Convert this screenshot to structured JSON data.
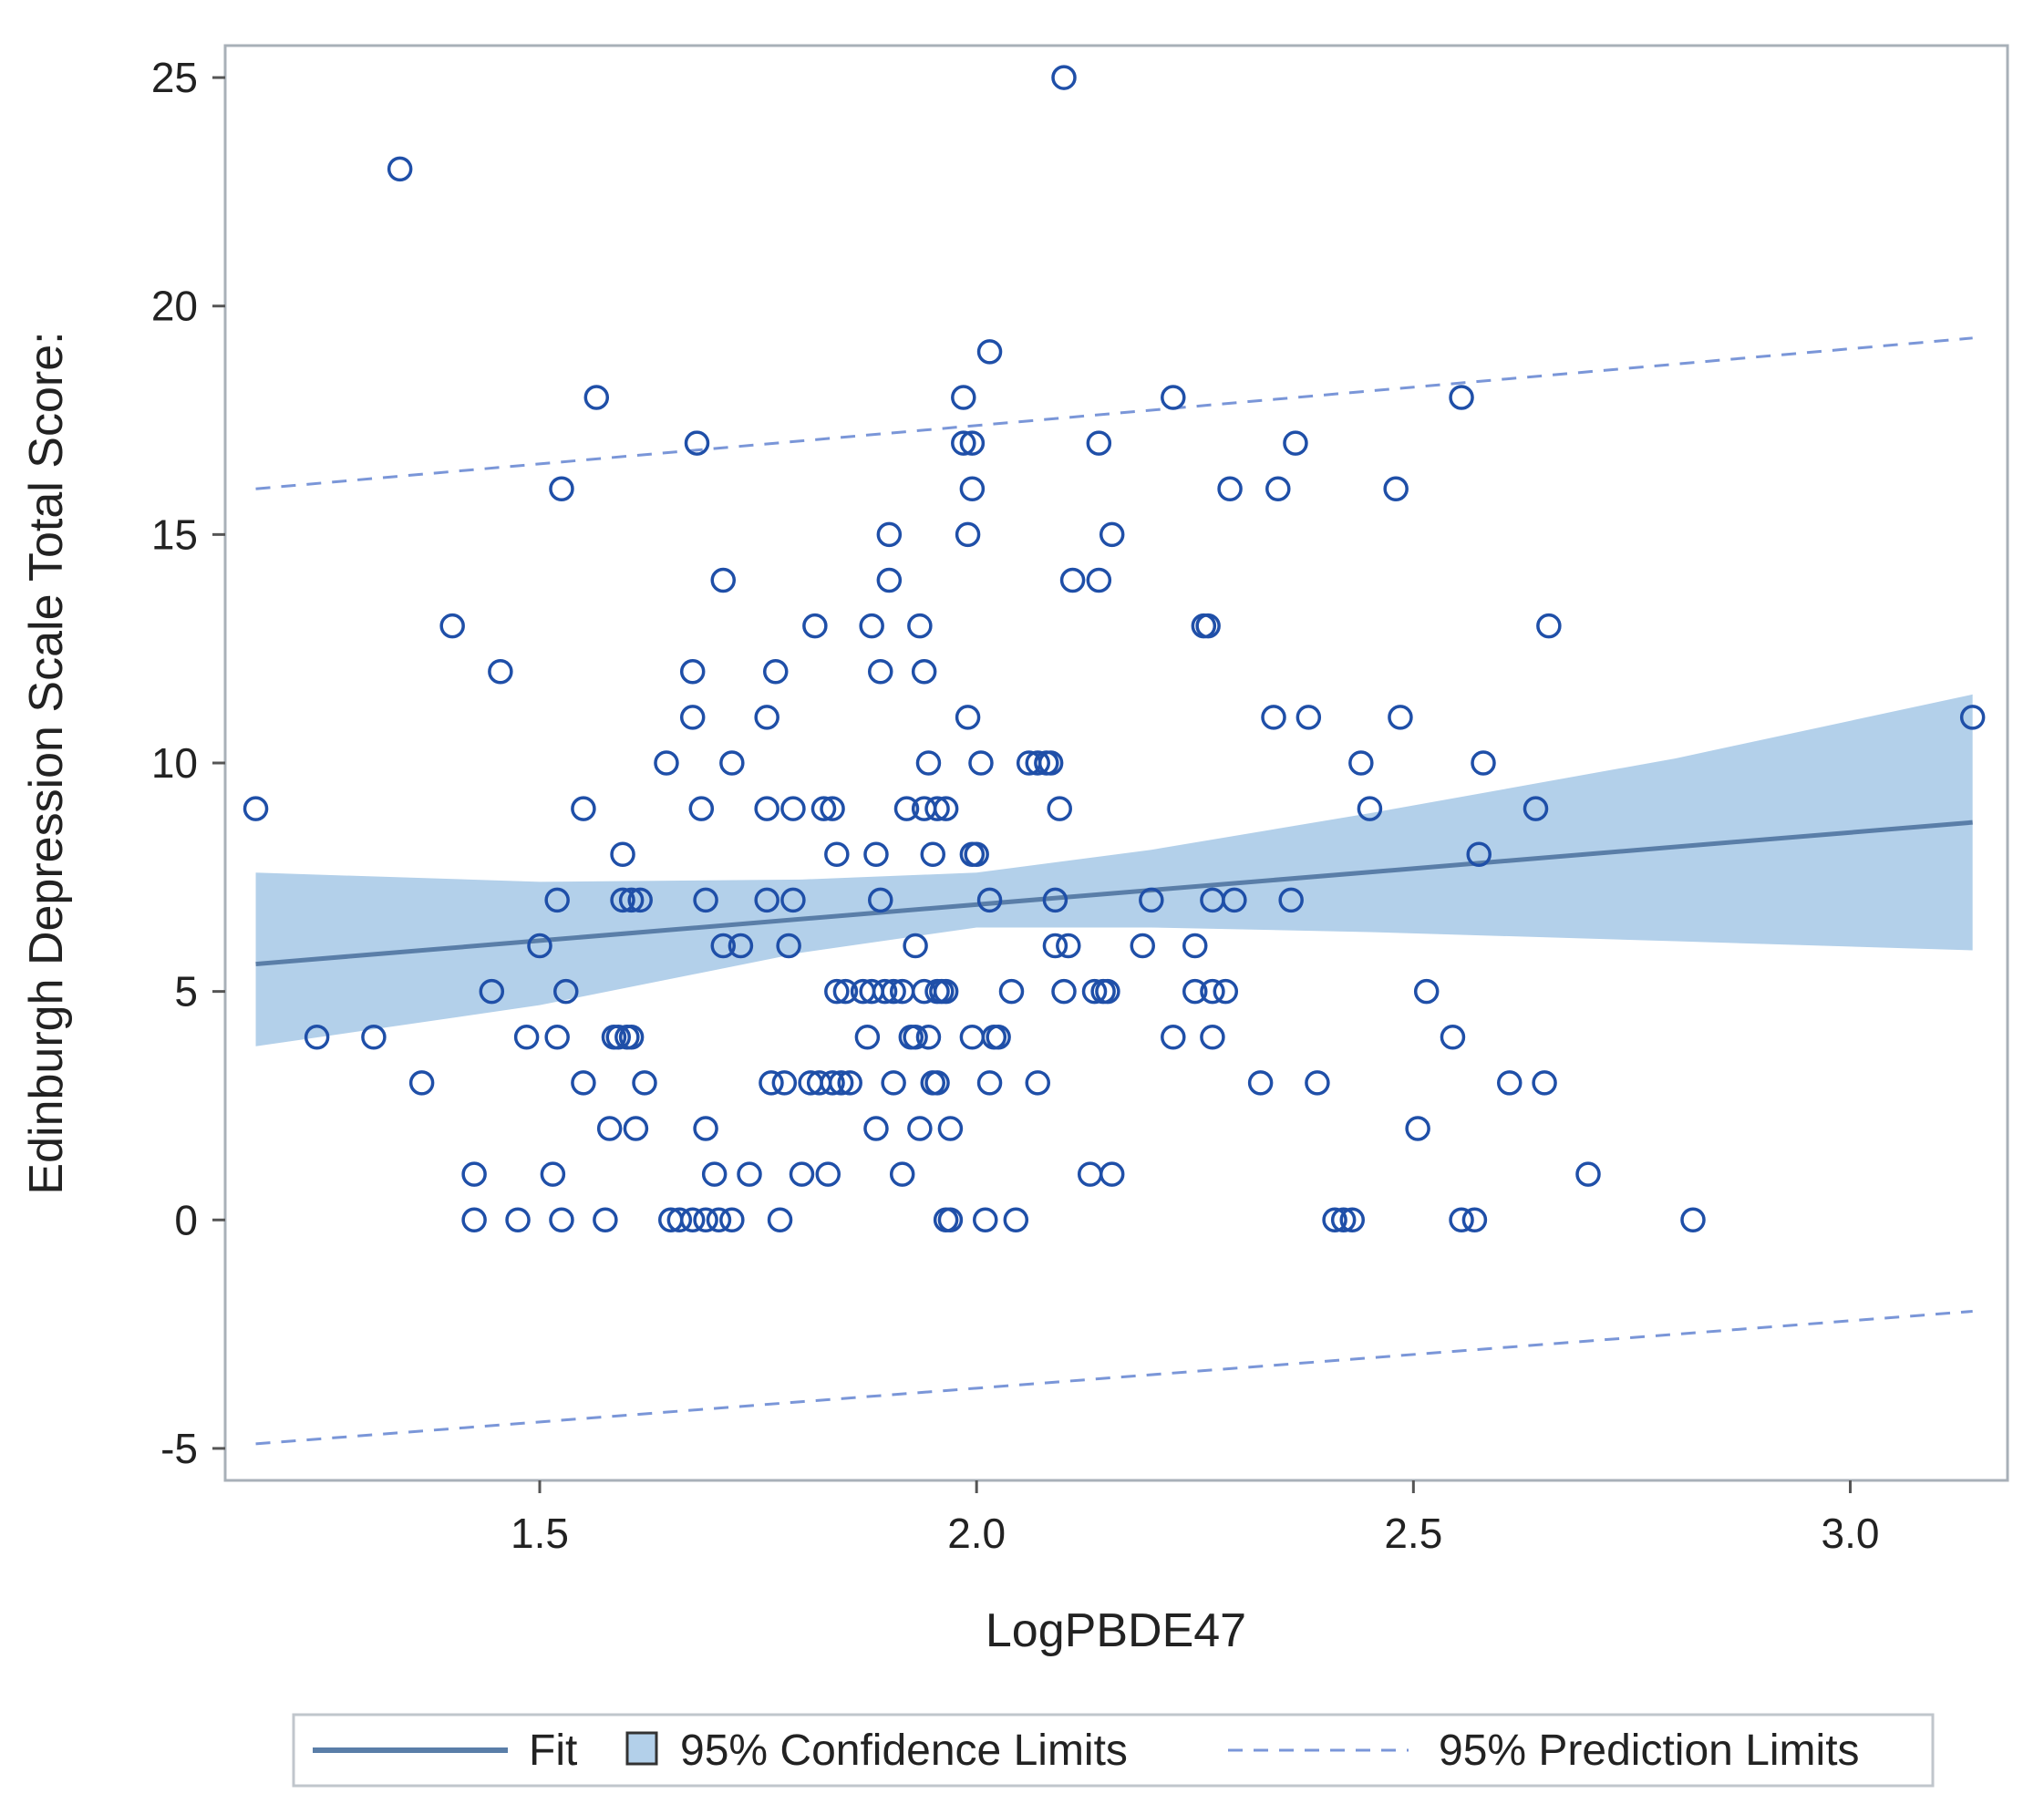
{
  "chart_data": {
    "type": "scatter",
    "title": "",
    "xlabel": "LogPBDE47",
    "ylabel": "Edinburgh Depression Scale  Total Score:",
    "xlim": [
      1.14,
      3.18
    ],
    "ylim": [
      -5.7,
      25.7
    ],
    "x_ticks": [
      1.5,
      2.0,
      2.5,
      3.0
    ],
    "x_tick_labels": [
      "1.5",
      "2.0",
      "2.5",
      "3.0"
    ],
    "y_ticks": [
      -5,
      0,
      5,
      10,
      15,
      20,
      25
    ],
    "y_tick_labels": [
      "-5",
      "0",
      "5",
      "10",
      "15",
      "20",
      "25"
    ],
    "grid": false,
    "colors": {
      "marker": "#1f4fa8",
      "fit": "#5a7ea8",
      "band": "#b3d0ea",
      "prediction": "#7a96d8",
      "frame": "#a8b0b8"
    },
    "fit_line": {
      "x": [
        1.175,
        3.14
      ],
      "y": [
        5.6,
        8.7
      ]
    },
    "confidence_band": {
      "x": [
        1.175,
        1.5,
        1.8,
        2.0,
        2.2,
        2.45,
        2.8,
        3.14
      ],
      "upper": [
        7.6,
        7.4,
        7.45,
        7.6,
        8.1,
        8.9,
        10.1,
        11.5
      ],
      "lower": [
        3.8,
        4.7,
        5.85,
        6.4,
        6.4,
        6.3,
        6.1,
        5.9
      ]
    },
    "prediction_limits": {
      "x": [
        1.175,
        3.14
      ],
      "upper": [
        16.0,
        19.3
      ],
      "lower": [
        -4.9,
        -2.0
      ]
    },
    "legend": {
      "position": "bottom",
      "items": [
        {
          "label": "Fit",
          "kind": "line"
        },
        {
          "label": "95% Confidence Limits",
          "kind": "band"
        },
        {
          "label": "95% Prediction Limits",
          "kind": "dashed"
        }
      ]
    },
    "points": [
      [
        1.175,
        9
      ],
      [
        1.245,
        4
      ],
      [
        1.31,
        4
      ],
      [
        1.34,
        23
      ],
      [
        1.365,
        3
      ],
      [
        1.4,
        13
      ],
      [
        1.425,
        1
      ],
      [
        1.425,
        0
      ],
      [
        1.445,
        5
      ],
      [
        1.455,
        12
      ],
      [
        1.475,
        0
      ],
      [
        1.485,
        4
      ],
      [
        1.5,
        6
      ],
      [
        1.515,
        1
      ],
      [
        1.52,
        4
      ],
      [
        1.52,
        7
      ],
      [
        1.525,
        16
      ],
      [
        1.525,
        0
      ],
      [
        1.53,
        5
      ],
      [
        1.55,
        9
      ],
      [
        1.55,
        3
      ],
      [
        1.565,
        18
      ],
      [
        1.575,
        0
      ],
      [
        1.58,
        2
      ],
      [
        1.585,
        4
      ],
      [
        1.59,
        4
      ],
      [
        1.595,
        8
      ],
      [
        1.595,
        7
      ],
      [
        1.6,
        4
      ],
      [
        1.605,
        4
      ],
      [
        1.605,
        7
      ],
      [
        1.61,
        2
      ],
      [
        1.615,
        7
      ],
      [
        1.62,
        3
      ],
      [
        1.645,
        10
      ],
      [
        1.65,
        0
      ],
      [
        1.66,
        0
      ],
      [
        1.675,
        0
      ],
      [
        1.675,
        11
      ],
      [
        1.675,
        12
      ],
      [
        1.68,
        17
      ],
      [
        1.685,
        9
      ],
      [
        1.69,
        7
      ],
      [
        1.69,
        2
      ],
      [
        1.69,
        0
      ],
      [
        1.7,
        1
      ],
      [
        1.705,
        0
      ],
      [
        1.71,
        14
      ],
      [
        1.71,
        6
      ],
      [
        1.72,
        10
      ],
      [
        1.72,
        0
      ],
      [
        1.73,
        6
      ],
      [
        1.74,
        1
      ],
      [
        1.76,
        11
      ],
      [
        1.76,
        9
      ],
      [
        1.76,
        7
      ],
      [
        1.765,
        3
      ],
      [
        1.77,
        12
      ],
      [
        1.775,
        0
      ],
      [
        1.78,
        3
      ],
      [
        1.785,
        6
      ],
      [
        1.79,
        9
      ],
      [
        1.79,
        7
      ],
      [
        1.8,
        1
      ],
      [
        1.81,
        3
      ],
      [
        1.815,
        13
      ],
      [
        1.82,
        3
      ],
      [
        1.825,
        9
      ],
      [
        1.83,
        1
      ],
      [
        1.835,
        9
      ],
      [
        1.835,
        3
      ],
      [
        1.84,
        8
      ],
      [
        1.84,
        5
      ],
      [
        1.845,
        3
      ],
      [
        1.85,
        5
      ],
      [
        1.855,
        3
      ],
      [
        1.87,
        5
      ],
      [
        1.875,
        4
      ],
      [
        1.88,
        13
      ],
      [
        1.88,
        5
      ],
      [
        1.885,
        8
      ],
      [
        1.885,
        2
      ],
      [
        1.89,
        12
      ],
      [
        1.89,
        7
      ],
      [
        1.895,
        5
      ],
      [
        1.9,
        15
      ],
      [
        1.9,
        14
      ],
      [
        1.905,
        5
      ],
      [
        1.905,
        3
      ],
      [
        1.915,
        5
      ],
      [
        1.915,
        1
      ],
      [
        1.92,
        9
      ],
      [
        1.925,
        4
      ],
      [
        1.93,
        6
      ],
      [
        1.93,
        4
      ],
      [
        1.935,
        13
      ],
      [
        1.935,
        2
      ],
      [
        1.94,
        12
      ],
      [
        1.94,
        9
      ],
      [
        1.94,
        5
      ],
      [
        1.945,
        4
      ],
      [
        1.945,
        10
      ],
      [
        1.95,
        8
      ],
      [
        1.95,
        3
      ],
      [
        1.955,
        9
      ],
      [
        1.955,
        5
      ],
      [
        1.955,
        3
      ],
      [
        1.96,
        5
      ],
      [
        1.965,
        9
      ],
      [
        1.965,
        5
      ],
      [
        1.97,
        2
      ],
      [
        1.965,
        0
      ],
      [
        1.97,
        0
      ],
      [
        1.985,
        18
      ],
      [
        1.985,
        17
      ],
      [
        1.99,
        11
      ],
      [
        1.99,
        15
      ],
      [
        1.995,
        17
      ],
      [
        1.995,
        16
      ],
      [
        1.995,
        8
      ],
      [
        1.995,
        4
      ],
      [
        2.0,
        8
      ],
      [
        2.005,
        10
      ],
      [
        2.01,
        0
      ],
      [
        2.015,
        19
      ],
      [
        2.015,
        7
      ],
      [
        2.015,
        3
      ],
      [
        2.02,
        4
      ],
      [
        2.025,
        4
      ],
      [
        2.04,
        5
      ],
      [
        2.045,
        0
      ],
      [
        2.06,
        10
      ],
      [
        2.07,
        10
      ],
      [
        2.07,
        3
      ],
      [
        2.08,
        10
      ],
      [
        2.085,
        10
      ],
      [
        2.09,
        7
      ],
      [
        2.09,
        6
      ],
      [
        2.095,
        9
      ],
      [
        2.1,
        25
      ],
      [
        2.1,
        5
      ],
      [
        2.105,
        6
      ],
      [
        2.11,
        14
      ],
      [
        2.13,
        1
      ],
      [
        2.135,
        5
      ],
      [
        2.14,
        17
      ],
      [
        2.14,
        14
      ],
      [
        2.145,
        5
      ],
      [
        2.15,
        5
      ],
      [
        2.155,
        15
      ],
      [
        2.155,
        1
      ],
      [
        2.19,
        6
      ],
      [
        2.2,
        7
      ],
      [
        2.225,
        18
      ],
      [
        2.225,
        4
      ],
      [
        2.25,
        6
      ],
      [
        2.25,
        5
      ],
      [
        2.26,
        13
      ],
      [
        2.265,
        13
      ],
      [
        2.27,
        7
      ],
      [
        2.27,
        5
      ],
      [
        2.27,
        4
      ],
      [
        2.285,
        5
      ],
      [
        2.29,
        16
      ],
      [
        2.295,
        7
      ],
      [
        2.325,
        3
      ],
      [
        2.34,
        11
      ],
      [
        2.345,
        16
      ],
      [
        2.36,
        7
      ],
      [
        2.365,
        17
      ],
      [
        2.38,
        11
      ],
      [
        2.39,
        3
      ],
      [
        2.41,
        0
      ],
      [
        2.42,
        0
      ],
      [
        2.43,
        0
      ],
      [
        2.44,
        10
      ],
      [
        2.45,
        9
      ],
      [
        2.48,
        16
      ],
      [
        2.485,
        11
      ],
      [
        2.505,
        2
      ],
      [
        2.515,
        5
      ],
      [
        2.545,
        4
      ],
      [
        2.555,
        18
      ],
      [
        2.555,
        0
      ],
      [
        2.57,
        0
      ],
      [
        2.575,
        8
      ],
      [
        2.58,
        10
      ],
      [
        2.61,
        3
      ],
      [
        2.64,
        9
      ],
      [
        2.65,
        3
      ],
      [
        2.655,
        13
      ],
      [
        2.7,
        1
      ],
      [
        2.82,
        0
      ],
      [
        3.14,
        11
      ]
    ]
  }
}
